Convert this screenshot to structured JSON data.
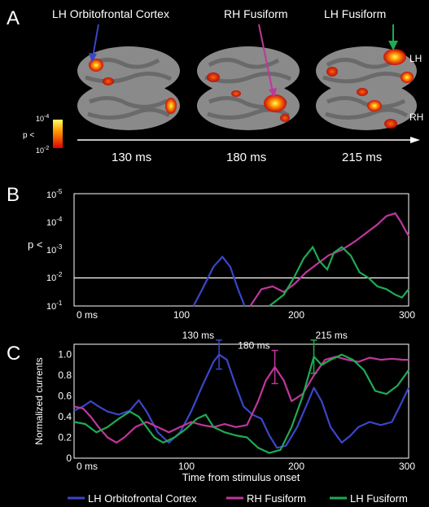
{
  "panels": {
    "a_label": "A",
    "b_label": "B",
    "c_label": "C"
  },
  "panel_a": {
    "region_labels": [
      "LH Orbitofrontal Cortex",
      "RH Fusiform",
      "LH Fusiform"
    ],
    "times": [
      "130 ms",
      "180 ms",
      "215 ms"
    ],
    "hemi_lh": "LH",
    "hemi_rh": "RH",
    "colorbar_top": "10",
    "colorbar_top_exp": "-4",
    "colorbar_bottom": "10",
    "colorbar_bottom_exp": "-2",
    "colorbar_label": "p <",
    "colors": {
      "lh_orbitofrontal": "#3b46c8",
      "rh_fusiform": "#c0379c",
      "lh_fusiform": "#1faa55"
    }
  },
  "chart_data": [
    {
      "type": "line",
      "panel": "B",
      "ylabel": "p <",
      "x_ticks": [
        "0 ms",
        "100",
        "200",
        "300"
      ],
      "x_tick_values": [
        0,
        100,
        200,
        300
      ],
      "y_scale": "log-reversed",
      "y_ticks": [
        {
          "base": "10",
          "exp": "-5",
          "value": -5
        },
        {
          "base": "10",
          "exp": "-4",
          "value": -4
        },
        {
          "base": "10",
          "exp": "-3",
          "value": -3
        },
        {
          "base": "10",
          "exp": "-2",
          "value": -2
        },
        {
          "base": "10",
          "exp": "-1",
          "value": -1
        }
      ],
      "xlim": [
        0,
        300
      ],
      "ylim_log10": [
        -1,
        -5
      ],
      "threshold_log10": -2,
      "series": [
        {
          "name": "LH Orbitofrontal Cortex",
          "color": "#3b46c8",
          "x": [
            107,
            115,
            125,
            133,
            140,
            147,
            153
          ],
          "y": [
            -1,
            -1.6,
            -2.4,
            -2.75,
            -2.4,
            -1.6,
            -1
          ]
        },
        {
          "name": "RH Fusiform",
          "color": "#c0379c",
          "x": [
            158,
            168,
            178,
            188,
            198,
            208,
            218,
            228,
            240,
            252,
            262,
            272,
            280,
            288,
            293,
            297,
            300
          ],
          "y": [
            -1,
            -1.6,
            -1.7,
            -1.5,
            -1.8,
            -2.2,
            -2.5,
            -2.8,
            -3.0,
            -3.3,
            -3.6,
            -3.9,
            -4.2,
            -4.3,
            -4.0,
            -3.7,
            -3.5
          ]
        },
        {
          "name": "LH Fusiform",
          "color": "#1faa55",
          "x": [
            175,
            188,
            197,
            206,
            214,
            220,
            227,
            233,
            240,
            248,
            256,
            264,
            272,
            280,
            288,
            294,
            300
          ],
          "y": [
            -1,
            -1.4,
            -2.0,
            -2.7,
            -3.1,
            -2.6,
            -2.3,
            -2.9,
            -3.1,
            -2.8,
            -2.2,
            -2.0,
            -1.7,
            -1.6,
            -1.4,
            -1.3,
            -1.6
          ]
        }
      ]
    },
    {
      "type": "line",
      "panel": "C",
      "ylabel": "Normalized currents",
      "xlabel": "Time from stimulus onset",
      "x_ticks": [
        "0 ms",
        "100",
        "200",
        "300"
      ],
      "x_tick_values": [
        0,
        100,
        200,
        300
      ],
      "y_ticks": [
        "0",
        "0.2",
        "0.4",
        "0.6",
        "0.8",
        "1.0"
      ],
      "y_tick_values": [
        0,
        0.2,
        0.4,
        0.6,
        0.8,
        1.0
      ],
      "xlim": [
        0,
        300
      ],
      "ylim": [
        0,
        1.1
      ],
      "annotations": [
        {
          "text": "130 ms",
          "x": 130,
          "y": 1.0,
          "err": 0.14,
          "color": "#3b46c8"
        },
        {
          "text": "180 ms",
          "x": 180,
          "y": 0.88,
          "err": 0.16,
          "color": "#c0379c"
        },
        {
          "text": "215 ms",
          "x": 215,
          "y": 0.98,
          "err": 0.16,
          "color": "#1faa55"
        }
      ],
      "series": [
        {
          "name": "LH Orbitofrontal Cortex",
          "color": "#3b46c8",
          "x": [
            0,
            8,
            15,
            22,
            30,
            40,
            50,
            58,
            65,
            75,
            85,
            95,
            105,
            115,
            125,
            130,
            137,
            145,
            152,
            160,
            168,
            175,
            182,
            190,
            200,
            210,
            215,
            222,
            230,
            240,
            248,
            255,
            265,
            275,
            285,
            292,
            300
          ],
          "y": [
            0.46,
            0.5,
            0.55,
            0.5,
            0.45,
            0.42,
            0.46,
            0.56,
            0.45,
            0.25,
            0.15,
            0.25,
            0.45,
            0.7,
            0.93,
            1.0,
            0.95,
            0.7,
            0.5,
            0.42,
            0.38,
            0.22,
            0.1,
            0.12,
            0.3,
            0.55,
            0.68,
            0.55,
            0.3,
            0.15,
            0.22,
            0.3,
            0.35,
            0.32,
            0.35,
            0.5,
            0.68
          ]
        },
        {
          "name": "RH Fusiform",
          "color": "#c0379c",
          "x": [
            0,
            8,
            15,
            22,
            30,
            38,
            45,
            55,
            65,
            75,
            85,
            95,
            105,
            115,
            125,
            135,
            145,
            155,
            165,
            172,
            180,
            188,
            195,
            205,
            215,
            225,
            235,
            245,
            255,
            265,
            275,
            285,
            295,
            300
          ],
          "y": [
            0.5,
            0.48,
            0.4,
            0.3,
            0.2,
            0.15,
            0.2,
            0.3,
            0.35,
            0.3,
            0.25,
            0.3,
            0.35,
            0.32,
            0.3,
            0.33,
            0.3,
            0.32,
            0.55,
            0.75,
            0.88,
            0.75,
            0.55,
            0.62,
            0.8,
            0.95,
            0.98,
            0.95,
            0.93,
            0.97,
            0.95,
            0.96,
            0.95,
            0.95
          ]
        },
        {
          "name": "LH Fusiform",
          "color": "#1faa55",
          "x": [
            0,
            10,
            20,
            30,
            40,
            50,
            58,
            65,
            72,
            80,
            90,
            100,
            110,
            118,
            125,
            135,
            145,
            155,
            165,
            175,
            185,
            195,
            205,
            215,
            222,
            230,
            240,
            250,
            260,
            270,
            280,
            290,
            300
          ],
          "y": [
            0.35,
            0.33,
            0.25,
            0.3,
            0.38,
            0.45,
            0.4,
            0.3,
            0.2,
            0.15,
            0.2,
            0.28,
            0.38,
            0.42,
            0.3,
            0.25,
            0.22,
            0.2,
            0.1,
            0.05,
            0.08,
            0.3,
            0.6,
            0.98,
            0.9,
            0.95,
            1.0,
            0.95,
            0.85,
            0.65,
            0.62,
            0.7,
            0.85
          ]
        }
      ]
    }
  ],
  "legend": {
    "items": [
      {
        "label": "LH Orbitofrontal Cortex",
        "color": "#3b46c8"
      },
      {
        "label": "RH Fusiform",
        "color": "#c0379c"
      },
      {
        "label": "LH Fusiform",
        "color": "#1faa55"
      }
    ]
  }
}
